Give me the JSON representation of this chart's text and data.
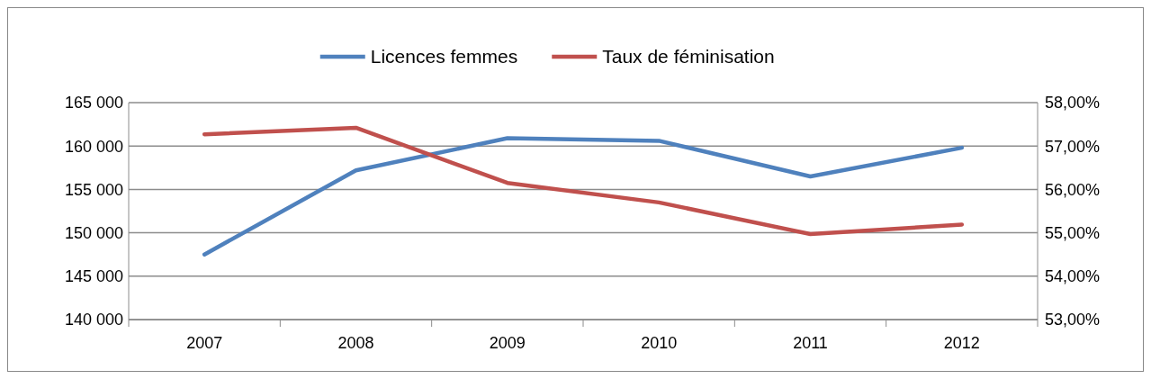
{
  "chart_data": {
    "type": "line",
    "categories": [
      "2007",
      "2008",
      "2009",
      "2010",
      "2011",
      "2012"
    ],
    "series": [
      {
        "name": "Licences femmes",
        "color": "#4f81bd",
        "values": [
          147500,
          157200,
          160900,
          160600,
          156500,
          159800
        ]
      },
      {
        "name": "Taux de féminisation",
        "color": "#c0504d",
        "axis": "y2",
        "values": [
          57.27,
          57.42,
          56.15,
          55.7,
          54.97,
          55.19
        ]
      }
    ],
    "ylim": [
      140000,
      165000
    ],
    "yticks": [
      {
        "value": 140000,
        "label": "140 000"
      },
      {
        "value": 145000,
        "label": "145 000"
      },
      {
        "value": 150000,
        "label": "150 000"
      },
      {
        "value": 155000,
        "label": "155 000"
      },
      {
        "value": 160000,
        "label": "160 000"
      },
      {
        "value": 165000,
        "label": "165 000"
      }
    ],
    "y2lim": [
      53,
      58
    ],
    "y2ticks": [
      {
        "value": 53,
        "label": "53,00%"
      },
      {
        "value": 54,
        "label": "54,00%"
      },
      {
        "value": 55,
        "label": "55,00%"
      },
      {
        "value": 56,
        "label": "56,00%"
      },
      {
        "value": 57,
        "label": "57,00%"
      },
      {
        "value": 58,
        "label": "58,00%"
      }
    ],
    "grid": "y",
    "legend": "top",
    "marker": "none",
    "line_style": "solid"
  }
}
